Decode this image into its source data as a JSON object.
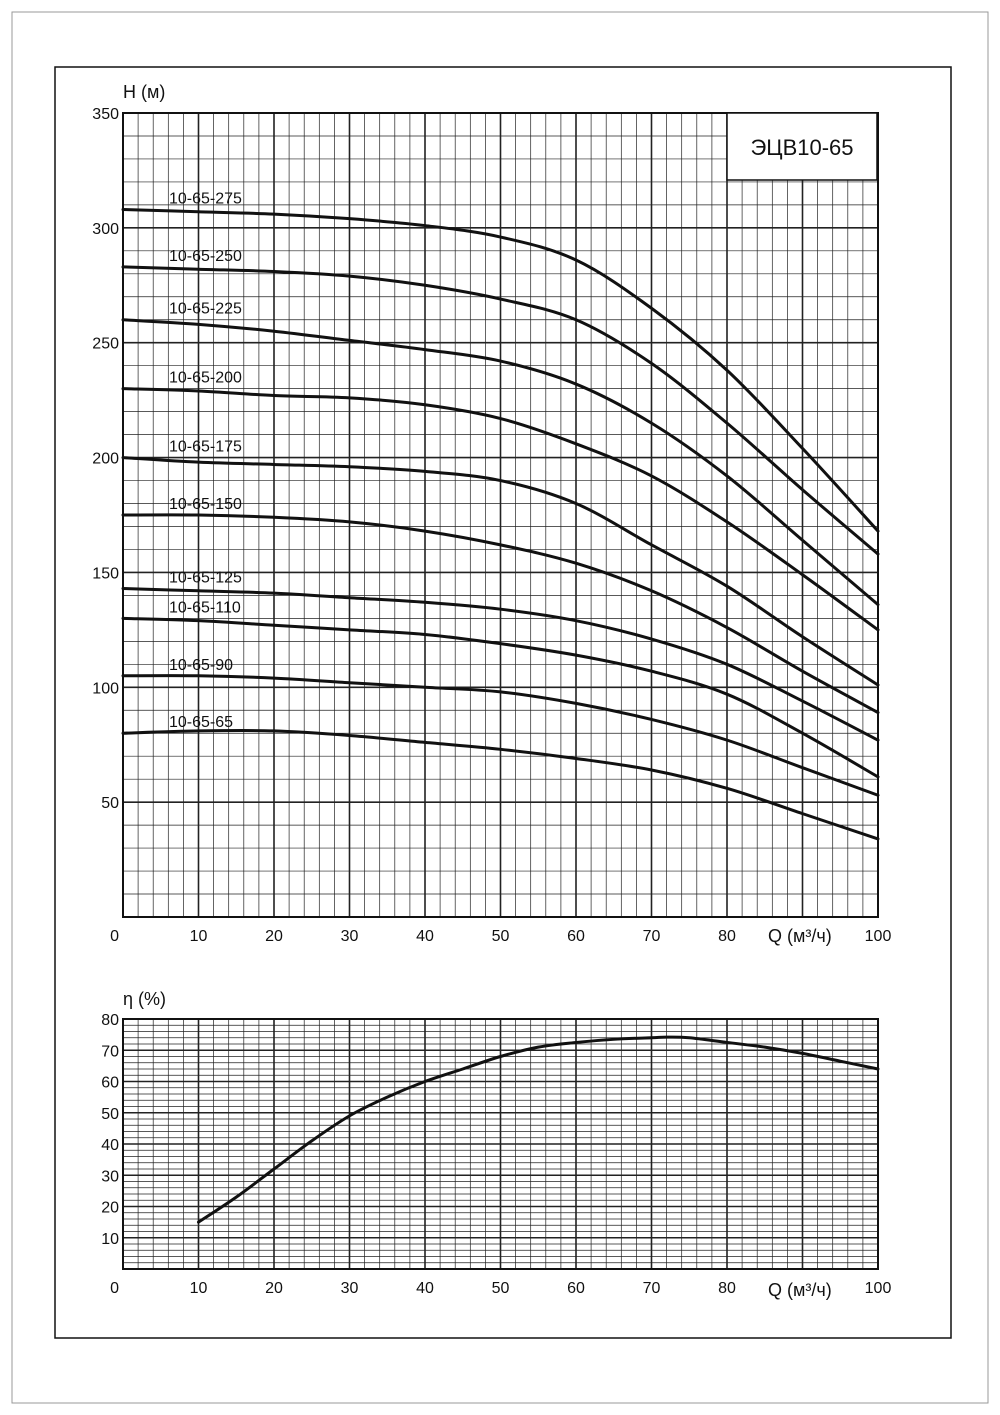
{
  "chart_data": [
    {
      "type": "line",
      "model_label": "ЭЦВ10-65",
      "ylabel": "Н (м)",
      "xlabel": "Q (м³/ч)",
      "xlim": [
        0,
        100
      ],
      "ylim": [
        0,
        350
      ],
      "x_ticks": [
        0,
        10,
        20,
        30,
        40,
        50,
        60,
        70,
        80,
        100
      ],
      "y_ticks": [
        50,
        100,
        150,
        200,
        250,
        300,
        350
      ],
      "grid": true,
      "x": [
        0,
        10,
        20,
        30,
        40,
        50,
        60,
        70,
        80,
        90,
        100
      ],
      "series": [
        {
          "name": "10-65-275",
          "values": [
            308,
            307,
            306,
            304,
            301,
            296,
            286,
            265,
            238,
            204,
            168
          ]
        },
        {
          "name": "10-65-250",
          "values": [
            283,
            282,
            281,
            279,
            275,
            269,
            260,
            241,
            215,
            186,
            158
          ]
        },
        {
          "name": "10-65-225",
          "values": [
            260,
            258,
            255,
            251,
            247,
            242,
            232,
            215,
            192,
            164,
            136
          ]
        },
        {
          "name": "10-65-200",
          "values": [
            230,
            229,
            227,
            226,
            223,
            217,
            206,
            192,
            172,
            149,
            125
          ]
        },
        {
          "name": "10-65-175",
          "values": [
            200,
            198,
            197,
            196,
            194,
            190,
            180,
            162,
            144,
            122,
            101
          ]
        },
        {
          "name": "10-65-150",
          "values": [
            175,
            175,
            174,
            172,
            168,
            162,
            154,
            142,
            126,
            107,
            89
          ]
        },
        {
          "name": "10-65-125",
          "values": [
            143,
            142,
            141,
            139,
            137,
            134,
            129,
            121,
            110,
            94,
            77
          ]
        },
        {
          "name": "10-65-110",
          "values": [
            130,
            129,
            127,
            125,
            123,
            119,
            114,
            107,
            97,
            80,
            61
          ]
        },
        {
          "name": "10-65-90",
          "values": [
            105,
            105,
            104,
            102,
            100,
            98,
            93,
            86,
            77,
            65,
            53
          ]
        },
        {
          "name": "10-65-65",
          "values": [
            80,
            81,
            81,
            79,
            76,
            73,
            69,
            64,
            56,
            45,
            34
          ]
        }
      ]
    },
    {
      "type": "line",
      "ylabel": "η (%)",
      "xlabel": "Q (м³/ч)",
      "xlim": [
        0,
        100
      ],
      "ylim": [
        0,
        80
      ],
      "x_ticks": [
        0,
        10,
        20,
        30,
        40,
        50,
        60,
        70,
        80,
        100
      ],
      "y_ticks": [
        10,
        20,
        30,
        40,
        50,
        60,
        70,
        80
      ],
      "grid": true,
      "x": [
        10,
        15,
        20,
        25,
        30,
        35,
        40,
        45,
        50,
        55,
        60,
        65,
        70,
        72,
        75,
        80,
        85,
        90,
        95,
        100
      ],
      "series": [
        {
          "values": [
            15,
            23,
            32,
            41,
            49,
            55,
            60,
            64,
            68,
            71,
            72.5,
            73.5,
            74,
            74.2,
            74,
            72.5,
            71,
            69,
            66.5,
            64
          ]
        }
      ]
    }
  ]
}
